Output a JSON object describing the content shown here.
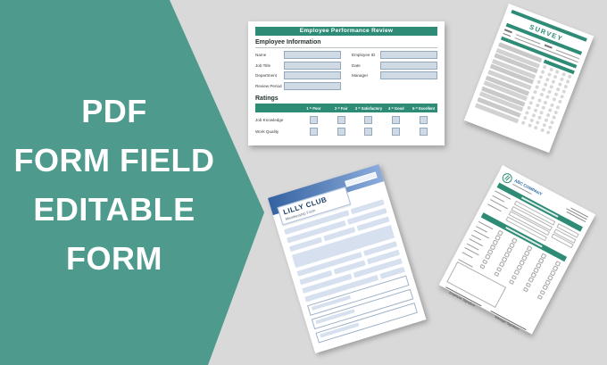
{
  "background_color": "#d9d9d9",
  "accent_colors": {
    "teal_banner": "#4e9a8c",
    "form_header_green": "#2e8b76",
    "input_fill": "#cfdae5",
    "input_border": "#93a9bd",
    "blue_header_dark": "#3462a0",
    "blue_header_light": "#8caddc",
    "blue_field_fill": "#d6e0ef",
    "company_name_blue": "#2a6da5"
  },
  "banner": {
    "lines": [
      "PDF",
      "FORM FIELD",
      "EDITABLE",
      "FORM"
    ]
  },
  "employee_form": {
    "title": "Employee Performance Review",
    "section_info": "Employee Information",
    "fields_left": [
      "Name",
      "Job Title",
      "Department",
      "Review Period"
    ],
    "fields_right": [
      "Employee ID",
      "Date",
      "Manager"
    ],
    "section_ratings": "Ratings",
    "rating_scale": [
      "1 = Poor",
      "2 = Fair",
      "3 = Satisfactory",
      "4 = Good",
      "5 = Excellent"
    ],
    "rating_rows": [
      "Job Knowledge",
      "Work Quality"
    ]
  },
  "survey_form": {
    "title": "SURVEY",
    "question_count": 12,
    "option_count": 5
  },
  "lilly_form": {
    "title": "LILLY CLUB",
    "subtitle": "Membership Form"
  },
  "abc_form": {
    "company": "ABC COMPANY",
    "signature_left": "Employee Signature",
    "signature_right": "Manager Signature"
  }
}
